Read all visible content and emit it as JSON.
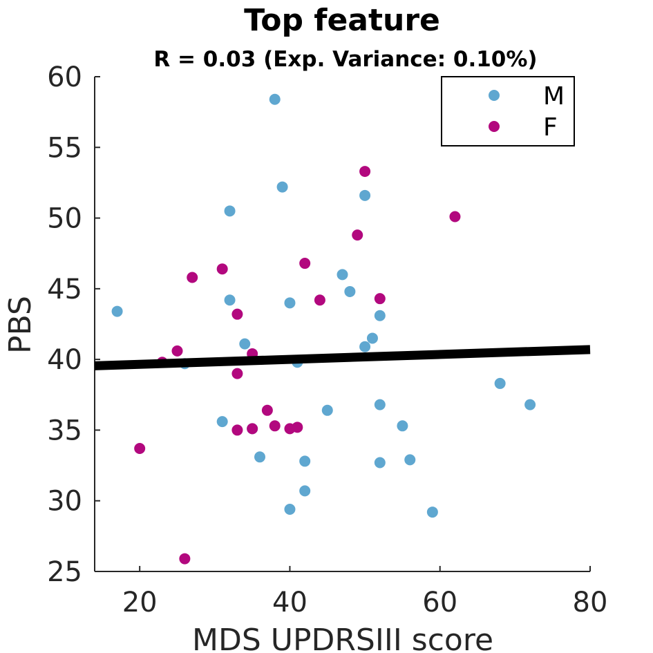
{
  "chart_data": {
    "type": "scatter",
    "title": "Top feature",
    "subtitle": "R = 0.03 (Exp. Variance: 0.10%)",
    "xlabel": "MDS UPDRSIII score",
    "ylabel": "PBS",
    "xlim": [
      14,
      80
    ],
    "ylim": [
      25,
      60
    ],
    "xticks": [
      20,
      40,
      60,
      80
    ],
    "yticks": [
      25,
      30,
      35,
      40,
      45,
      50,
      55,
      60
    ],
    "grid": false,
    "legend_position": "top-right",
    "series": [
      {
        "name": "M",
        "color": "#5fa7d0",
        "points": [
          [
            17,
            43.4
          ],
          [
            26,
            39.7
          ],
          [
            31,
            35.6
          ],
          [
            32,
            50.5
          ],
          [
            32,
            44.2
          ],
          [
            34,
            41.1
          ],
          [
            35,
            35.1
          ],
          [
            36,
            33.1
          ],
          [
            38,
            58.4
          ],
          [
            39,
            52.2
          ],
          [
            40,
            44.0
          ],
          [
            40,
            29.4
          ],
          [
            41,
            39.8
          ],
          [
            42,
            32.8
          ],
          [
            42,
            30.7
          ],
          [
            45,
            36.4
          ],
          [
            47,
            46.0
          ],
          [
            48,
            44.8
          ],
          [
            50,
            51.6
          ],
          [
            50,
            40.9
          ],
          [
            51,
            41.5
          ],
          [
            52,
            43.1
          ],
          [
            52,
            36.8
          ],
          [
            52,
            32.7
          ],
          [
            55,
            35.3
          ],
          [
            56,
            32.9
          ],
          [
            59,
            29.2
          ],
          [
            68,
            38.3
          ],
          [
            72,
            36.8
          ]
        ]
      },
      {
        "name": "F",
        "color": "#b2087e",
        "points": [
          [
            20,
            33.7
          ],
          [
            23,
            39.8
          ],
          [
            25,
            40.6
          ],
          [
            26,
            25.9
          ],
          [
            27,
            45.8
          ],
          [
            31,
            46.4
          ],
          [
            33,
            43.2
          ],
          [
            33,
            39.0
          ],
          [
            33,
            35.0
          ],
          [
            35,
            40.4
          ],
          [
            35,
            35.1
          ],
          [
            37,
            36.4
          ],
          [
            38,
            35.3
          ],
          [
            40,
            35.1
          ],
          [
            41,
            35.2
          ],
          [
            42,
            46.8
          ],
          [
            44,
            44.2
          ],
          [
            49,
            48.8
          ],
          [
            50,
            53.3
          ],
          [
            52,
            44.3
          ],
          [
            62,
            50.1
          ]
        ]
      }
    ],
    "fit_line": {
      "x": [
        14,
        80
      ],
      "y": [
        39.55,
        40.7
      ],
      "color": "#000000"
    }
  }
}
